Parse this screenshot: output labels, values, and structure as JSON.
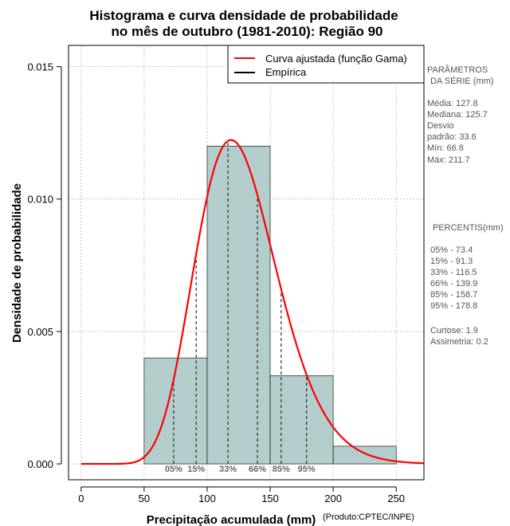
{
  "chart_data": {
    "type": "bar",
    "title_line1": "Histograma e curva densidade de probabilidade",
    "title_line2": "no mês de outubro (1981-2010): Região 90",
    "xlabel": "Precipitação acumulada (mm)",
    "ylabel": "Densidade de probabilidade",
    "product_note": "(Produto:CPTEC/INPE)",
    "xlim": [
      -10,
      272
    ],
    "ylim": [
      -0.0006,
      0.0158
    ],
    "x_ticks": [
      0,
      50,
      100,
      150,
      200,
      250
    ],
    "x_tick_labels": [
      "0",
      "50",
      "100",
      "150",
      "200",
      "250"
    ],
    "y_ticks": [
      0,
      0.005,
      0.01,
      0.015
    ],
    "y_tick_labels": [
      "0.000",
      "0.005",
      "0.010",
      "0.015"
    ],
    "grid": true,
    "bins": [
      {
        "start": 50,
        "end": 100,
        "density": 0.004
      },
      {
        "start": 100,
        "end": 150,
        "density": 0.012
      },
      {
        "start": 150,
        "end": 200,
        "density": 0.00333
      },
      {
        "start": 200,
        "end": 250,
        "density": 0.000667
      }
    ],
    "bar_color": "#b3cccc",
    "curve_color": "#ff0000",
    "gamma_fit": {
      "mean": 127.8,
      "sd": 33.6
    },
    "percentile_marks": [
      {
        "label": "05%",
        "x": 73.4
      },
      {
        "label": "15%",
        "x": 91.3
      },
      {
        "label": "33%",
        "x": 116.5
      },
      {
        "label": "66%",
        "x": 139.9
      },
      {
        "label": "85%",
        "x": 158.7
      },
      {
        "label": "95%",
        "x": 178.8
      }
    ],
    "legend": {
      "position": "top-right",
      "items": [
        {
          "label": "Curva ajustada (função Gama)",
          "color": "#ff0000"
        },
        {
          "label": "Empírica",
          "color": "#000000"
        }
      ]
    }
  },
  "side_panel": {
    "params_title_1": "PARÂMETROS",
    "params_title_2": "DA SÉRIE (mm)",
    "lines": [
      "Média:  127.8",
      "Mediana:  125.7",
      "Desvio",
      "padrão:  33.6",
      "Mín:  66.8",
      "Máx:  211.7"
    ],
    "percentis_title": "PERCENTIS(mm)",
    "percentis": [
      "05% -  73.4",
      "15% -  91.3",
      "33% -  116.5",
      "66% -  139.9",
      "85% -  158.7",
      "95% -  178.8"
    ],
    "extra": [
      "Curtose:  1.9",
      "Assimetria:  0.2"
    ]
  }
}
